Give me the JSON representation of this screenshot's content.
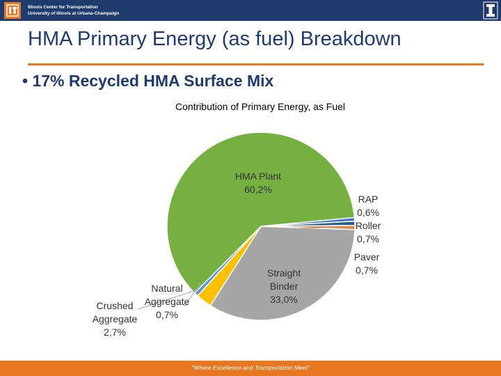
{
  "header": {
    "org_line1": "Illinois Center for Transportation",
    "org_line2": "University of Illinois at Urbana-Champaign",
    "logo_icon": "ict-logo-icon",
    "university_icon": "block-i-icon",
    "bar_color": "#1f3b6e",
    "accent_color": "#e87722"
  },
  "slide": {
    "title": "HMA Primary Energy (as fuel) Breakdown",
    "bullet": "• 17% Recycled HMA Surface Mix"
  },
  "chart_data": {
    "type": "pie",
    "title": "Contribution of Primary Energy, as Fuel",
    "slices": [
      {
        "name": "HMA Plant",
        "value": 60.2,
        "label_value": "60,2%",
        "color": "#76b041"
      },
      {
        "name": "Straight Binder",
        "value": 33.0,
        "label_value": "33,0%",
        "color": "#a6a6a6"
      },
      {
        "name": "Crushed Aggregate",
        "value": 2.7,
        "label_value": "2,7%",
        "color": "#ffc000"
      },
      {
        "name": "Natural Aggregate",
        "value": 0.7,
        "label_value": "0,7%",
        "color": "#5b9bd5"
      },
      {
        "name": "RAP",
        "value": 0.6,
        "label_value": "0,6%",
        "color": "#4472c4"
      },
      {
        "name": "Roller",
        "value": 0.7,
        "label_value": "0,7%",
        "color": "#255e91"
      },
      {
        "name": "Paver",
        "value": 0.7,
        "label_value": "0,7%",
        "color": "#ed7d31"
      }
    ],
    "legend": "none"
  },
  "footer": {
    "tagline": "\"Where Excellence and Transportation Meet\""
  }
}
